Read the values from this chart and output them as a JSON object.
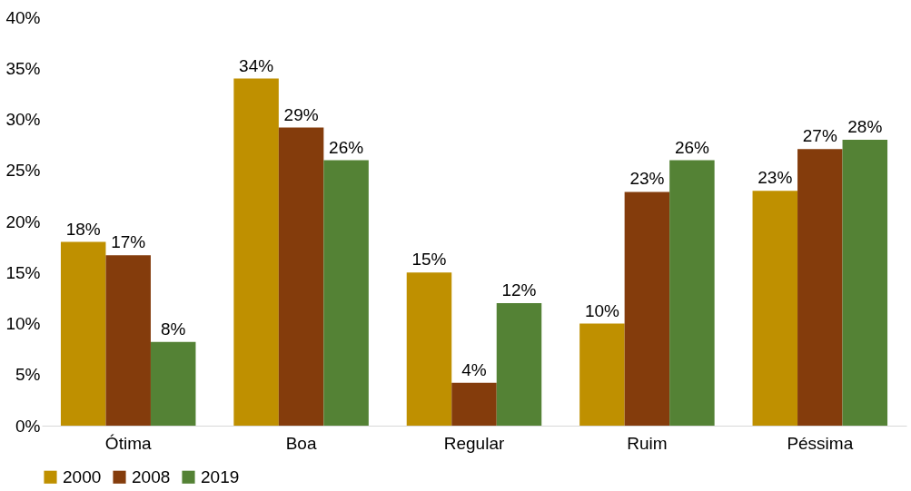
{
  "chart_data": {
    "type": "bar",
    "categories": [
      "Ótima",
      "Boa",
      "Regular",
      "Ruim",
      "Péssima"
    ],
    "series": [
      {
        "name": "2000",
        "color": "#bf9000",
        "values": [
          18,
          34,
          15,
          10,
          23
        ],
        "value_labels": [
          "18%",
          "34%",
          "15%",
          "10%",
          "23%"
        ]
      },
      {
        "name": "2008",
        "color": "#843c0c",
        "values": [
          16.7,
          29.2,
          4.2,
          22.9,
          27.1
        ],
        "value_labels": [
          "17%",
          "29%",
          "4%",
          "23%",
          "27%"
        ]
      },
      {
        "name": "2019",
        "color": "#548235",
        "values": [
          8.2,
          26,
          12,
          26,
          28
        ],
        "value_labels": [
          "8%",
          "26%",
          "12%",
          "26%",
          "28%"
        ]
      }
    ],
    "ylim": [
      0,
      40
    ],
    "yticks": [
      {
        "value": 0,
        "label": "0%"
      },
      {
        "value": 5,
        "label": "5%"
      },
      {
        "value": 10,
        "label": "10%"
      },
      {
        "value": 15,
        "label": "15%"
      },
      {
        "value": 20,
        "label": "20%"
      },
      {
        "value": 25,
        "label": "25%"
      },
      {
        "value": 30,
        "label": "30%"
      },
      {
        "value": 35,
        "label": "35%"
      },
      {
        "value": 40,
        "label": "40%"
      }
    ],
    "grid": false,
    "legend": "bottom"
  }
}
